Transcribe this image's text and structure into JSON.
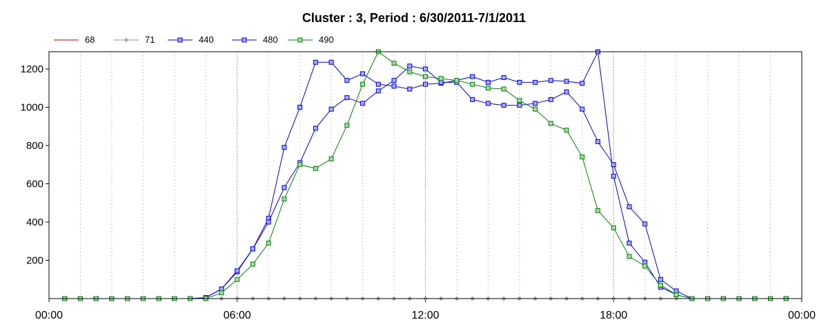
{
  "chart_data": {
    "type": "line",
    "title": "Cluster : 3, Period : 6/30/2011-7/1/2011",
    "xlabel": "",
    "ylabel": "",
    "xlim": [
      "00:00",
      "00:00"
    ],
    "ylim": [
      0,
      1290
    ],
    "x_ticks": [
      "00:00",
      "06:00",
      "12:00",
      "18:00",
      "00:00"
    ],
    "y_ticks": [
      200,
      400,
      600,
      800,
      1000,
      1200
    ],
    "grid": "vertical dotted",
    "legend_position": "top-left",
    "x": [
      "00:30",
      "01:00",
      "01:30",
      "02:00",
      "02:30",
      "03:00",
      "03:30",
      "04:00",
      "04:30",
      "05:00",
      "05:30",
      "06:00",
      "06:30",
      "07:00",
      "07:30",
      "08:00",
      "08:30",
      "09:00",
      "09:30",
      "10:00",
      "10:30",
      "11:00",
      "11:30",
      "12:00",
      "12:30",
      "13:00",
      "13:30",
      "14:00",
      "14:30",
      "15:00",
      "15:30",
      "16:00",
      "16:30",
      "17:00",
      "17:30",
      "18:00",
      "18:30",
      "19:00",
      "19:30",
      "20:00",
      "20:30",
      "21:00",
      "21:30",
      "22:00",
      "22:30",
      "23:00",
      "23:30"
    ],
    "series": [
      {
        "name": "68",
        "color": "#b00000",
        "marker": "none",
        "values": [
          0,
          0,
          0,
          0,
          0,
          0,
          0,
          0,
          0,
          0,
          0,
          0,
          0,
          0,
          0,
          0,
          0,
          0,
          0,
          0,
          0,
          0,
          0,
          0,
          0,
          0,
          0,
          0,
          0,
          0,
          0,
          0,
          0,
          0,
          0,
          0,
          0,
          0,
          0,
          0,
          0,
          0,
          0,
          0,
          0,
          0,
          0
        ]
      },
      {
        "name": "71",
        "color": "#909090",
        "marker": "diamond",
        "values": [
          0,
          0,
          0,
          0,
          0,
          0,
          0,
          0,
          0,
          0,
          0,
          0,
          0,
          0,
          0,
          0,
          0,
          0,
          0,
          0,
          0,
          0,
          0,
          0,
          0,
          0,
          0,
          0,
          0,
          0,
          0,
          0,
          0,
          0,
          0,
          0,
          0,
          0,
          0,
          0,
          0,
          0,
          0,
          0,
          0,
          0,
          0
        ]
      },
      {
        "name": "440",
        "color": "#0000cc",
        "marker": "square",
        "values": [
          0,
          0,
          0,
          0,
          0,
          0,
          0,
          0,
          0,
          5,
          50,
          140,
          260,
          420,
          790,
          1000,
          1235,
          1235,
          1140,
          1175,
          1120,
          1110,
          1095,
          1120,
          1125,
          1140,
          1160,
          1130,
          1155,
          1130,
          1130,
          1140,
          1135,
          1125,
          1290,
          640,
          290,
          190,
          60,
          20,
          0,
          0,
          0,
          0,
          0,
          0,
          0
        ]
      },
      {
        "name": "480",
        "color": "#0000cc",
        "marker": "square",
        "values": [
          0,
          0,
          0,
          0,
          0,
          0,
          0,
          0,
          0,
          5,
          50,
          145,
          260,
          400,
          580,
          710,
          890,
          990,
          1050,
          1020,
          1085,
          1140,
          1215,
          1200,
          1130,
          1130,
          1040,
          1020,
          1010,
          1010,
          1020,
          1040,
          1080,
          990,
          820,
          700,
          480,
          390,
          100,
          40,
          0,
          0,
          0,
          0,
          0,
          0,
          0
        ]
      },
      {
        "name": "490",
        "color": "#008000",
        "marker": "square",
        "values": [
          0,
          0,
          0,
          0,
          0,
          0,
          0,
          0,
          0,
          0,
          30,
          100,
          180,
          290,
          520,
          700,
          680,
          730,
          905,
          1120,
          1290,
          1230,
          1185,
          1160,
          1150,
          1140,
          1120,
          1100,
          1095,
          1035,
          990,
          915,
          880,
          740,
          460,
          370,
          220,
          170,
          70,
          20,
          0,
          0,
          0,
          0,
          0,
          0,
          0
        ]
      }
    ]
  }
}
